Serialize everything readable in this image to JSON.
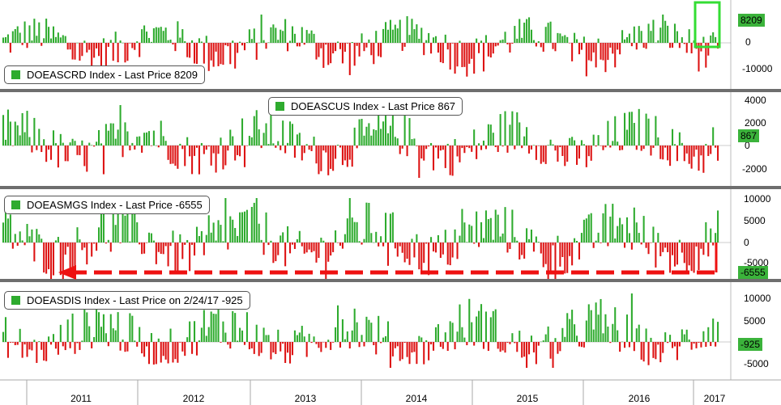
{
  "chart_data": [
    {
      "type": "bar",
      "legend": "DOEASCRD Index - Last Price 8209",
      "last_value": "8209",
      "yticks": [
        "0",
        "-10000"
      ],
      "ylim": [
        -15000,
        13000
      ],
      "highlight": "recent bars (2017) highlighted with green box"
    },
    {
      "type": "bar",
      "legend": "DOEASCUS Index - Last Price 867",
      "last_value": "867",
      "yticks": [
        "4000",
        "2000",
        "0",
        "-2000"
      ],
      "ylim": [
        -3500,
        4600
      ]
    },
    {
      "type": "bar",
      "legend": "DOEASMGS Index - Last Price -6555",
      "last_value": "-6555",
      "yticks": [
        "10000",
        "5000",
        "0",
        "-5000"
      ],
      "ylim": [
        -11000,
        12000
      ],
      "annotation": "red dashed arrow pointing left from latest value back to 2011"
    },
    {
      "type": "bar",
      "legend": "DOEASDIS Index - Last Price on 2/24/17 -925",
      "last_value": "-925",
      "yticks": [
        "10000",
        "5000",
        "-5000"
      ],
      "ylim": [
        -7500,
        12500
      ]
    }
  ],
  "x_axis": {
    "labels": [
      "2011",
      "2012",
      "2013",
      "2014",
      "2015",
      "2016",
      "2017"
    ]
  },
  "colors": {
    "positive": "#2eab2e",
    "negative": "#dd1111",
    "panel_separator": "#6e6e6e",
    "highlight_box": "#33dd33",
    "arrow": "#ee1111"
  }
}
